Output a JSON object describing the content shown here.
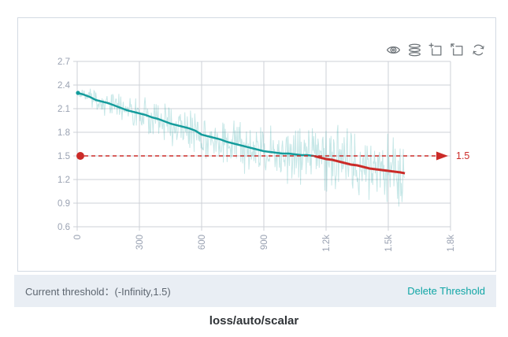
{
  "title": "loss/auto/scalar",
  "toolbar": {
    "icons": [
      {
        "name": "visibility-eye-icon"
      },
      {
        "name": "runs-stack-icon"
      },
      {
        "name": "zoom-select-icon"
      },
      {
        "name": "restore-zoom-icon"
      },
      {
        "name": "refresh-icon"
      }
    ]
  },
  "footer": {
    "label": "Current threshold：",
    "value": "(-Infinity,1.5)",
    "delete_label": "Delete Threshold"
  },
  "colors": {
    "accent_teal": "#149c9c",
    "raw_line": "rgba(26,158,158,0.25)",
    "threshold_red": "#cb2b28",
    "link_teal": "#0fa5a5"
  },
  "chart_data": {
    "type": "line",
    "title": "loss/auto/scalar",
    "xlabel": "",
    "ylabel": "",
    "xlim": [
      0,
      1800
    ],
    "ylim": [
      0.6,
      2.7
    ],
    "x_ticks": [
      0,
      300,
      600,
      900,
      1200,
      1500,
      1800
    ],
    "x_tick_labels": [
      "0",
      "300",
      "600",
      "900",
      "1.2k",
      "1.5k",
      "1.8k"
    ],
    "y_ticks": [
      0.6,
      0.9,
      1.2,
      1.5,
      1.8,
      2.1,
      2.4,
      2.7
    ],
    "y_tick_labels": [
      "0.6",
      "0.9",
      "1.2",
      "1.5",
      "1.8",
      "2.1",
      "2.4",
      "2.7"
    ],
    "grid": true,
    "grid_color": "#cdd1d7",
    "tick_color": "#9aa2b2",
    "threshold": {
      "value": 1.5,
      "label": "1.5",
      "range_text": "(-Infinity,1.5)",
      "color": "#cb2b28",
      "style": "dashed-arrow-right",
      "start_dot": true
    },
    "series": [
      {
        "name": "raw",
        "role": "unsmoothed-scalar",
        "color": "rgba(26,158,158,0.25)",
        "derived_from": "smoothed",
        "noise": {
          "seed": 11,
          "step": 3,
          "scale": 1.5,
          "envelope": [
            [
              0,
              0.05
            ],
            [
              60,
              0.1
            ],
            [
              150,
              0.14
            ],
            [
              300,
              0.17
            ],
            [
              450,
              0.2
            ],
            [
              600,
              0.22
            ],
            [
              750,
              0.24
            ],
            [
              900,
              0.27
            ],
            [
              1050,
              0.29
            ],
            [
              1200,
              0.31
            ],
            [
              1350,
              0.33
            ],
            [
              1500,
              0.34
            ],
            [
              1580,
              0.3
            ]
          ]
        }
      },
      {
        "name": "smoothed",
        "role": "smoothed-scalar",
        "color": "#149c9c",
        "color_below_threshold": "#cb2b28",
        "points": [
          [
            0,
            2.3
          ],
          [
            30,
            2.28
          ],
          [
            60,
            2.25
          ],
          [
            90,
            2.21
          ],
          [
            120,
            2.19
          ],
          [
            150,
            2.17
          ],
          [
            180,
            2.14
          ],
          [
            210,
            2.11
          ],
          [
            240,
            2.08
          ],
          [
            270,
            2.06
          ],
          [
            300,
            2.04
          ],
          [
            330,
            2.02
          ],
          [
            360,
            1.99
          ],
          [
            390,
            1.97
          ],
          [
            420,
            1.94
          ],
          [
            450,
            1.91
          ],
          [
            480,
            1.89
          ],
          [
            510,
            1.87
          ],
          [
            540,
            1.85
          ],
          [
            570,
            1.82
          ],
          [
            600,
            1.77
          ],
          [
            630,
            1.75
          ],
          [
            660,
            1.73
          ],
          [
            690,
            1.71
          ],
          [
            720,
            1.68
          ],
          [
            750,
            1.66
          ],
          [
            780,
            1.64
          ],
          [
            810,
            1.62
          ],
          [
            840,
            1.6
          ],
          [
            870,
            1.58
          ],
          [
            900,
            1.56
          ],
          [
            930,
            1.55
          ],
          [
            960,
            1.54
          ],
          [
            990,
            1.53
          ],
          [
            1020,
            1.53
          ],
          [
            1050,
            1.52
          ],
          [
            1080,
            1.51
          ],
          [
            1110,
            1.51
          ],
          [
            1140,
            1.5
          ],
          [
            1170,
            1.48
          ],
          [
            1200,
            1.46
          ],
          [
            1230,
            1.45
          ],
          [
            1260,
            1.43
          ],
          [
            1290,
            1.41
          ],
          [
            1320,
            1.39
          ],
          [
            1350,
            1.38
          ],
          [
            1380,
            1.36
          ],
          [
            1410,
            1.34
          ],
          [
            1440,
            1.33
          ],
          [
            1470,
            1.32
          ],
          [
            1500,
            1.31
          ],
          [
            1530,
            1.3
          ],
          [
            1560,
            1.29
          ],
          [
            1580,
            1.28
          ]
        ]
      }
    ]
  }
}
